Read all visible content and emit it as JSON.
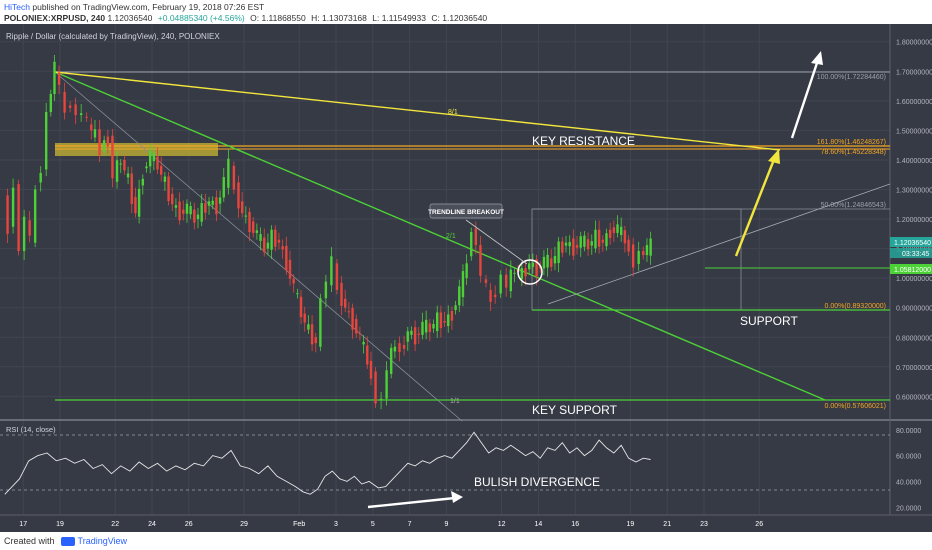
{
  "header": {
    "author": "HiTech",
    "published_text": "published on TradingView.com, February 19, 2018 07:26 EST",
    "symbol": "POLONIEX:XRPUSD, 240",
    "last": "1.12036540",
    "change": "+0.04885340 (+4.56%)",
    "open": "O: 1.11868550",
    "high": "H: 1.13073168",
    "low": "L: 1.11549933",
    "close": "C: 1.12036540"
  },
  "footer": {
    "created_with": "Created with",
    "brand": "TradingView"
  },
  "chart_data": {
    "type": "candlestick",
    "title": "Ripple / Dollar (calculated by TradingView), 240, POLONIEX",
    "x_ticks": [
      "17",
      "19",
      "22",
      "24",
      "26",
      "29",
      "Feb",
      "3",
      "5",
      "7",
      "9",
      "12",
      "14",
      "16",
      "19",
      "21",
      "23",
      "26"
    ],
    "y_ticks": [
      "1.80000000",
      "1.70000000",
      "1.60000000",
      "1.50000000",
      "1.40000000",
      "1.30000000",
      "1.20000000",
      "1.10000000",
      "1.00000000",
      "0.90000000",
      "0.80000000",
      "0.70000000",
      "0.60000000"
    ],
    "y_tick_values": [
      1.8,
      1.7,
      1.6,
      1.5,
      1.4,
      1.3,
      1.2,
      1.1,
      1.0,
      0.9,
      0.8,
      0.7,
      0.6
    ],
    "ylim": [
      0.52,
      1.86
    ],
    "price_path": [
      [
        16.0,
        1.28
      ],
      [
        16.3,
        1.15
      ],
      [
        16.6,
        1.33
      ],
      [
        16.9,
        1.08
      ],
      [
        17.2,
        1.22
      ],
      [
        17.5,
        1.12
      ],
      [
        17.8,
        1.3
      ],
      [
        18.1,
        1.38
      ],
      [
        18.4,
        1.55
      ],
      [
        18.8,
        1.72
      ],
      [
        19.1,
        1.63
      ],
      [
        19.4,
        1.56
      ],
      [
        19.7,
        1.6
      ],
      [
        20.0,
        1.54
      ],
      [
        20.3,
        1.57
      ],
      [
        20.6,
        1.52
      ],
      [
        21.0,
        1.48
      ],
      [
        21.3,
        1.44
      ],
      [
        21.7,
        1.47
      ],
      [
        22.0,
        1.35
      ],
      [
        22.4,
        1.4
      ],
      [
        22.8,
        1.33
      ],
      [
        23.2,
        1.22
      ],
      [
        23.6,
        1.36
      ],
      [
        24.0,
        1.42
      ],
      [
        24.4,
        1.38
      ],
      [
        24.8,
        1.32
      ],
      [
        25.2,
        1.25
      ],
      [
        25.6,
        1.22
      ],
      [
        26.0,
        1.24
      ],
      [
        26.4,
        1.2
      ],
      [
        26.8,
        1.23
      ],
      [
        27.2,
        1.26
      ],
      [
        27.6,
        1.24
      ],
      [
        28.0,
        1.33
      ],
      [
        28.3,
        1.38
      ],
      [
        28.6,
        1.3
      ],
      [
        29.0,
        1.22
      ],
      [
        29.4,
        1.18
      ],
      [
        29.8,
        1.15
      ],
      [
        30.2,
        1.1
      ],
      [
        30.6,
        1.14
      ],
      [
        31.0,
        1.12
      ],
      [
        31.4,
        1.05
      ],
      [
        31.8,
        0.97
      ],
      [
        32.2,
        0.88
      ],
      [
        32.6,
        0.82
      ],
      [
        33.0,
        0.78
      ],
      [
        33.3,
        0.92
      ],
      [
        33.6,
        1.0
      ],
      [
        33.9,
        1.05
      ],
      [
        34.2,
        0.96
      ],
      [
        34.6,
        0.9
      ],
      [
        35.0,
        0.85
      ],
      [
        35.4,
        0.8
      ],
      [
        35.8,
        0.72
      ],
      [
        36.0,
        0.66
      ],
      [
        36.3,
        0.6
      ],
      [
        36.6,
        0.58
      ],
      [
        36.9,
        0.7
      ],
      [
        37.3,
        0.78
      ],
      [
        37.6,
        0.75
      ],
      [
        38.0,
        0.82
      ],
      [
        38.4,
        0.8
      ],
      [
        38.8,
        0.84
      ],
      [
        39.2,
        0.83
      ],
      [
        39.6,
        0.86
      ],
      [
        40.0,
        0.85
      ],
      [
        40.4,
        0.88
      ],
      [
        40.8,
        0.96
      ],
      [
        41.0,
        1.0
      ],
      [
        41.2,
        1.05
      ],
      [
        41.5,
        1.18
      ],
      [
        41.7,
        1.1
      ],
      [
        42.0,
        1.02
      ],
      [
        42.3,
        0.96
      ],
      [
        42.5,
        0.92
      ],
      [
        42.8,
        0.96
      ],
      [
        43.1,
        1.0
      ],
      [
        43.4,
        0.98
      ],
      [
        43.8,
        1.03
      ],
      [
        44.2,
        1.01
      ],
      [
        44.6,
        1.05
      ],
      [
        45.0,
        1.03
      ],
      [
        45.4,
        1.06
      ],
      [
        45.8,
        1.05
      ],
      [
        46.2,
        1.1
      ],
      [
        46.6,
        1.12
      ],
      [
        47.0,
        1.1
      ],
      [
        47.4,
        1.13
      ],
      [
        47.8,
        1.11
      ],
      [
        48.2,
        1.14
      ],
      [
        48.6,
        1.12
      ],
      [
        49.0,
        1.16
      ],
      [
        49.4,
        1.17
      ],
      [
        49.8,
        1.13
      ],
      [
        50.0,
        1.09
      ],
      [
        50.3,
        1.06
      ],
      [
        50.6,
        1.08
      ],
      [
        51.0,
        1.1
      ],
      [
        51.2,
        1.11
      ]
    ],
    "levels": [
      {
        "label": "100.00%(1.72284460)",
        "value": 1.7228446
      },
      {
        "label": "161.80%(1.46248267)",
        "value": 1.46248267
      },
      {
        "label": "78.60%(1.45228348)",
        "value": 1.45228348
      },
      {
        "label": "50.00%(1.24846543)",
        "value": 1.24846543
      },
      {
        "label": "0.00%(0.89320000)",
        "value": 0.8932
      },
      {
        "label": "0.00%(0.57606021)",
        "value": 0.57606021
      }
    ],
    "price_labels": [
      "1.12036540",
      "03:33:45",
      "1.05812000"
    ],
    "annotations": [
      "KEY RESISTANCE",
      "SUPPORT",
      "KEY SUPPORT",
      "TRENDLINE BREAKOUT",
      "BULISH DIVERGENCE",
      "8/1",
      "2/1",
      "1/1"
    ],
    "rsi": {
      "label": "RSI (14, close)",
      "ticks": [
        "80.0000",
        "60.0000",
        "40.0000",
        "20.0000"
      ],
      "tick_values": [
        80,
        60,
        40,
        20
      ],
      "ylim": [
        14,
        86
      ],
      "path": [
        [
          16.0,
          30
        ],
        [
          16.8,
          42
        ],
        [
          17.3,
          56
        ],
        [
          17.8,
          60
        ],
        [
          18.3,
          62
        ],
        [
          18.8,
          56
        ],
        [
          19.3,
          58
        ],
        [
          19.8,
          54
        ],
        [
          20.3,
          57
        ],
        [
          20.8,
          50
        ],
        [
          21.3,
          53
        ],
        [
          21.8,
          46
        ],
        [
          22.3,
          52
        ],
        [
          22.8,
          48
        ],
        [
          23.3,
          55
        ],
        [
          23.8,
          50
        ],
        [
          24.3,
          54
        ],
        [
          24.8,
          48
        ],
        [
          25.3,
          52
        ],
        [
          25.8,
          49
        ],
        [
          26.3,
          54
        ],
        [
          26.8,
          52
        ],
        [
          27.3,
          60
        ],
        [
          27.8,
          58
        ],
        [
          28.3,
          64
        ],
        [
          28.8,
          52
        ],
        [
          29.3,
          50
        ],
        [
          29.8,
          46
        ],
        [
          30.3,
          52
        ],
        [
          30.8,
          44
        ],
        [
          31.3,
          40
        ],
        [
          31.8,
          36
        ],
        [
          32.2,
          32
        ],
        [
          32.6,
          30
        ],
        [
          33.0,
          34
        ],
        [
          33.4,
          44
        ],
        [
          33.8,
          48
        ],
        [
          34.2,
          42
        ],
        [
          34.6,
          40
        ],
        [
          35.0,
          44
        ],
        [
          35.4,
          38
        ],
        [
          35.8,
          40
        ],
        [
          36.3,
          35
        ],
        [
          36.7,
          36
        ],
        [
          37.1,
          42
        ],
        [
          37.5,
          48
        ],
        [
          37.9,
          54
        ],
        [
          38.3,
          52
        ],
        [
          38.7,
          56
        ],
        [
          39.1,
          54
        ],
        [
          39.5,
          58
        ],
        [
          39.9,
          60
        ],
        [
          40.3,
          58
        ],
        [
          40.7,
          64
        ],
        [
          41.1,
          70
        ],
        [
          41.5,
          78
        ],
        [
          41.9,
          70
        ],
        [
          42.3,
          62
        ],
        [
          42.7,
          66
        ],
        [
          43.1,
          64
        ],
        [
          43.5,
          68
        ],
        [
          43.9,
          64
        ],
        [
          44.3,
          60
        ],
        [
          44.7,
          63
        ],
        [
          45.1,
          58
        ],
        [
          45.5,
          66
        ],
        [
          45.9,
          64
        ],
        [
          46.3,
          70
        ],
        [
          46.7,
          62
        ],
        [
          47.1,
          66
        ],
        [
          47.5,
          60
        ],
        [
          47.9,
          64
        ],
        [
          48.3,
          72
        ],
        [
          48.7,
          66
        ],
        [
          49.1,
          62
        ],
        [
          49.5,
          68
        ],
        [
          49.9,
          58
        ],
        [
          50.3,
          55
        ],
        [
          50.7,
          58
        ],
        [
          51.1,
          57
        ]
      ]
    }
  }
}
